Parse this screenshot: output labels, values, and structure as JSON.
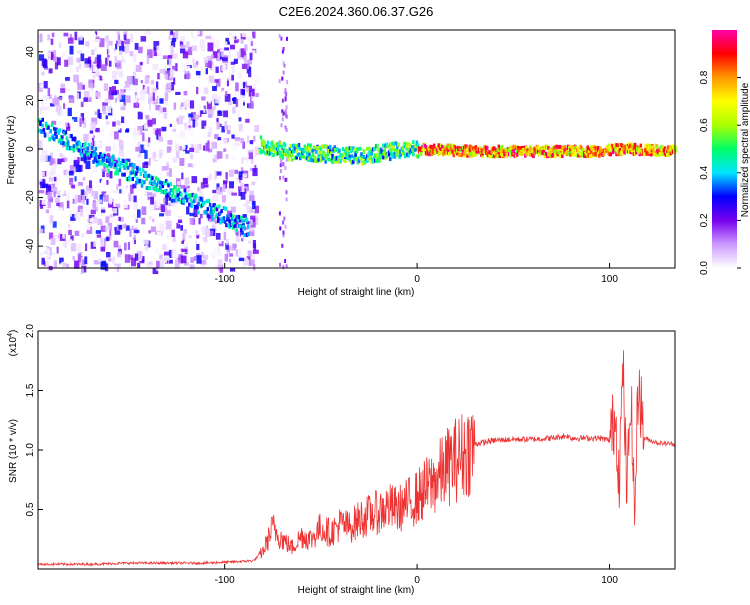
{
  "chart_data": [
    {
      "type": "heatmap",
      "title": "C2E6.2024.360.06.37.G26",
      "xlabel": "Height of straight line (km)",
      "ylabel": "Frequency (Hz)",
      "xlim": [
        -197,
        134
      ],
      "ylim": [
        -49,
        49
      ],
      "xticks": [
        "-100",
        "0",
        "100"
      ],
      "yticks": [
        "-40",
        "-20",
        "0",
        "20",
        "40"
      ],
      "colorbar": {
        "label": "Normalized spectral amplitude",
        "range": [
          0,
          1
        ],
        "ticks": [
          "0.0",
          "0.2",
          "0.4",
          "0.6",
          "0.8"
        ],
        "colors": [
          "#ffffff",
          "#cc99ff",
          "#7700ee",
          "#0000ff",
          "#00e5ff",
          "#00ff66",
          "#aaff00",
          "#ffff00",
          "#ff9900",
          "#ff0000",
          "#ff00aa"
        ]
      },
      "signal_track": [
        {
          "x": -197,
          "y": 10
        },
        {
          "x": -180,
          "y": 2
        },
        {
          "x": -160,
          "y": -6
        },
        {
          "x": -140,
          "y": -13
        },
        {
          "x": -120,
          "y": -21
        },
        {
          "x": -100,
          "y": -28
        },
        {
          "x": -88,
          "y": -33
        },
        {
          "x": -83,
          "y": 2
        },
        {
          "x": -70,
          "y": -1
        },
        {
          "x": -50,
          "y": -2
        },
        {
          "x": -30,
          "y": -3
        },
        {
          "x": -15,
          "y": -1
        },
        {
          "x": 0,
          "y": 0
        },
        {
          "x": 30,
          "y": -1
        },
        {
          "x": 60,
          "y": -1
        },
        {
          "x": 90,
          "y": -1
        },
        {
          "x": 110,
          "y": 0
        },
        {
          "x": 134,
          "y": -1
        }
      ]
    },
    {
      "type": "line",
      "xlabel": "Height of straight line (km)",
      "ylabel": "SNR (10 * v/v)",
      "y_multiplier": "(x10",
      "y_multiplier_exp": "4",
      "y_multiplier_close": ")",
      "xlim": [
        -197,
        134
      ],
      "ylim": [
        0,
        2.0
      ],
      "xticks": [
        "-100",
        "0",
        "100"
      ],
      "yticks": [
        "0.5",
        "1.0",
        "1.5",
        "2.0"
      ],
      "color": "#ee3333",
      "series": [
        {
          "x": [
            -197,
            -170,
            -150,
            -130,
            -110,
            -95,
            -85,
            -80,
            -75,
            -70,
            -65,
            -60,
            -55,
            -50,
            -45,
            -40,
            -35,
            -30,
            -25,
            -20,
            -15,
            -10,
            -5,
            0,
            5,
            10,
            15,
            20,
            25,
            30,
            40,
            50,
            60,
            70,
            78,
            80,
            85,
            90,
            95,
            100,
            103,
            105,
            107,
            109,
            111,
            113,
            115,
            118,
            125,
            134
          ],
          "values": [
            0.04,
            0.04,
            0.05,
            0.05,
            0.05,
            0.06,
            0.07,
            0.15,
            0.35,
            0.25,
            0.18,
            0.28,
            0.25,
            0.35,
            0.3,
            0.38,
            0.35,
            0.42,
            0.45,
            0.48,
            0.52,
            0.5,
            0.55,
            0.6,
            0.68,
            0.75,
            0.85,
            0.92,
            0.98,
            1.05,
            1.08,
            1.09,
            1.09,
            1.1,
            1.12,
            1.1,
            1.1,
            1.1,
            1.1,
            1.08,
            1.3,
            0.8,
            1.7,
            0.6,
            1.5,
            0.45,
            1.6,
            1.1,
            1.06,
            1.05
          ]
        }
      ]
    }
  ]
}
